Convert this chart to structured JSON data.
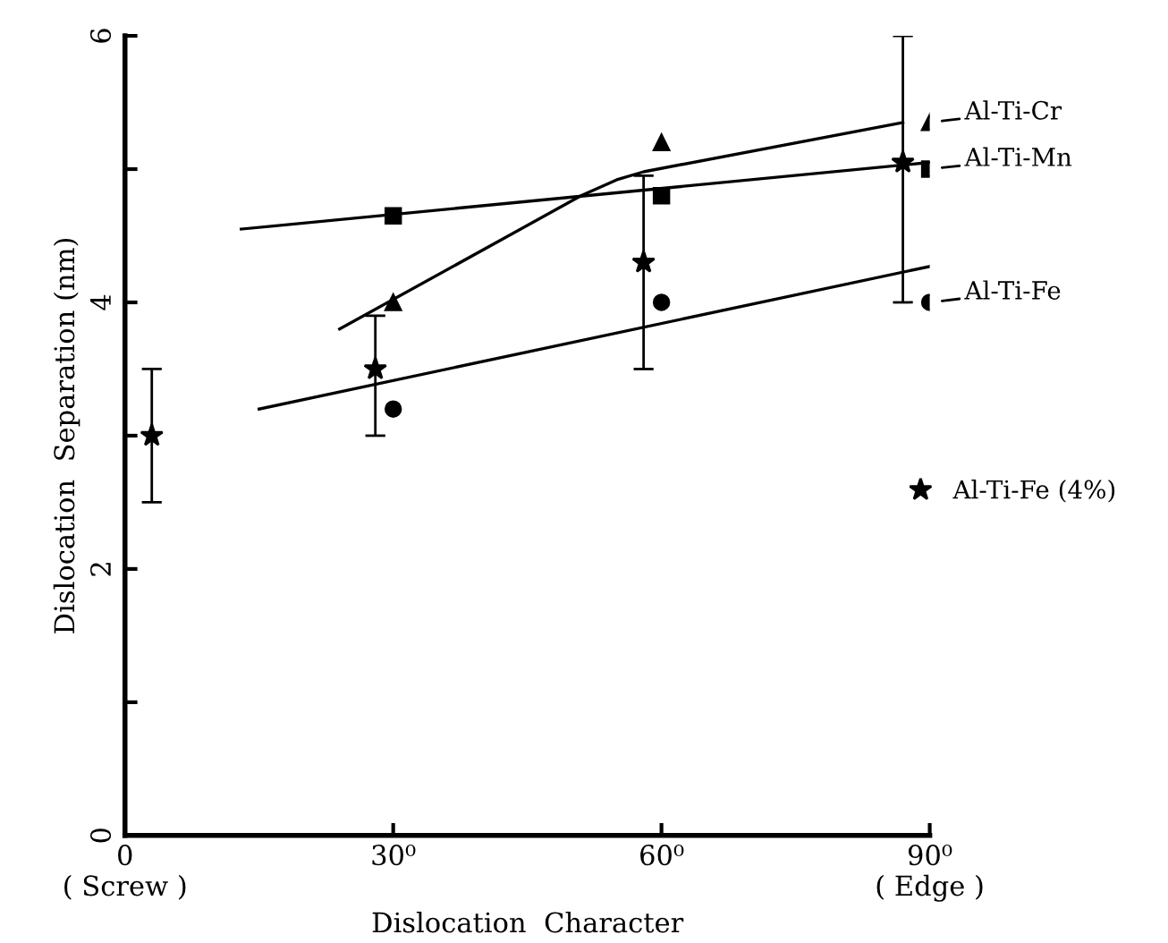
{
  "chart_data": {
    "type": "scatter",
    "xlabel": "Dislocation  Character",
    "ylabel": "Dislocation  Separation (nm)",
    "xlim": [
      0,
      90
    ],
    "ylim": [
      0,
      6
    ],
    "xticks": [
      {
        "value": 0,
        "label": "0\n( Screw )"
      },
      {
        "value": 30,
        "label": "30⁰"
      },
      {
        "value": 60,
        "label": "60⁰"
      },
      {
        "value": 90,
        "label": "90⁰\n( Edge )"
      }
    ],
    "yticks": [
      0,
      {
        "value": 1,
        "label": null
      },
      2,
      {
        "value": 3,
        "label": null
      },
      4,
      {
        "value": 5,
        "label": null
      },
      6
    ],
    "grid": false,
    "legend": "right",
    "series": [
      {
        "name": "Al-Ti-Cr",
        "color": "#000000",
        "marker": "triangle",
        "x": [
          30,
          60,
          90
        ],
        "values": [
          4.0,
          5.2,
          5.35
        ]
      },
      {
        "name": "Al-Ti-Mn",
        "color": "#000000",
        "marker": "square",
        "x": [
          30,
          60,
          90
        ],
        "values": [
          4.65,
          4.8,
          5.0
        ]
      },
      {
        "name": "Al-Ti-Fe",
        "color": "#000000",
        "marker": "circle",
        "x": [
          30,
          60,
          90
        ],
        "values": [
          3.2,
          4.0,
          4.0
        ]
      },
      {
        "name": "Al-Ti-Fe (4%)",
        "color": "#000000",
        "marker": "star",
        "x": [
          3,
          28,
          58,
          87
        ],
        "values": [
          3.0,
          3.5,
          4.3,
          5.05
        ],
        "errors": [
          [
            2.5,
            3.5
          ],
          [
            3.0,
            3.9
          ],
          [
            3.5,
            4.95
          ],
          [
            4.0,
            6.0
          ]
        ]
      },
      {
        "type": "line",
        "color": "#000000",
        "marker": "none",
        "line_style": "solid",
        "x": [
          24,
          51,
          55,
          58,
          87
        ],
        "values": [
          3.8,
          4.8,
          4.92,
          4.98,
          5.35
        ]
      },
      {
        "type": "line",
        "color": "#000000",
        "marker": "none",
        "line_style": "solid",
        "x": [
          13,
          90
        ],
        "values": [
          4.55,
          5.05
        ]
      },
      {
        "type": "line",
        "color": "#000000",
        "marker": "none",
        "line_style": "solid",
        "x": [
          15,
          90
        ],
        "values": [
          3.2,
          4.27
        ]
      }
    ]
  }
}
